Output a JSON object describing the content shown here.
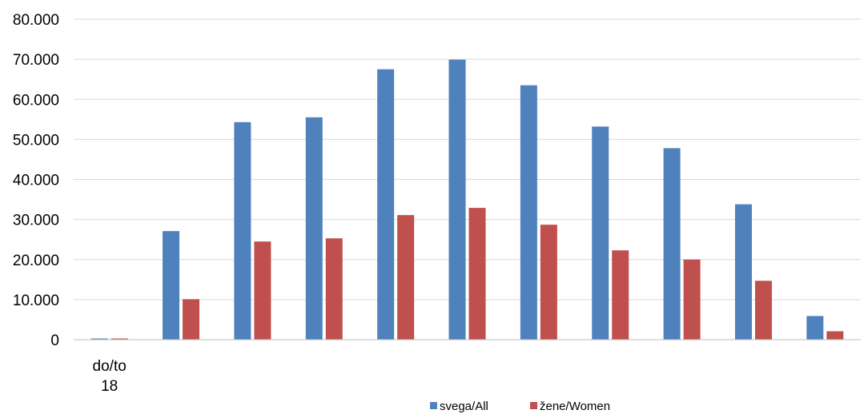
{
  "chart_data": {
    "type": "bar",
    "categories": [
      "do/to 18",
      "",
      "",
      "",
      "",
      "",
      "",
      "",
      "",
      "",
      ""
    ],
    "series": [
      {
        "name": "svega/All",
        "color": "#4f81bd",
        "values": [
          300,
          27100,
          54300,
          55500,
          67500,
          69900,
          63500,
          53200,
          47800,
          33800,
          5900
        ]
      },
      {
        "name": "žene/Women",
        "color": "#c0504d",
        "values": [
          300,
          10100,
          24500,
          25300,
          31100,
          32900,
          28700,
          22300,
          20000,
          14700,
          2100
        ]
      }
    ],
    "yticks": [
      "0",
      "10.000",
      "20.000",
      "30.000",
      "40.000",
      "50.000",
      "60.000",
      "70.000",
      "80.000"
    ],
    "ylim": [
      0,
      80000
    ],
    "grid": true,
    "legend": "bottom-center"
  }
}
